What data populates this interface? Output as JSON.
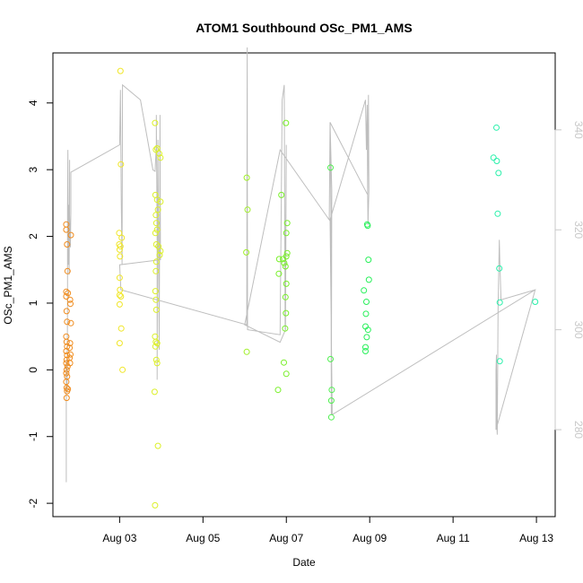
{
  "chart_data": {
    "type": "scatter",
    "title": "ATOM1 Southbound OSc_PM1_AMS",
    "xlabel": "Date",
    "ylabel": "OSc_PM1_AMS",
    "x_unit": "days since Aug 01",
    "xlim": [
      1.4,
      13.45
    ],
    "ylim": [
      -2.2,
      4.75
    ],
    "x_ticks": [
      {
        "value": 3,
        "label": "Aug 03"
      },
      {
        "value": 5,
        "label": "Aug 05"
      },
      {
        "value": 7,
        "label": "Aug 07"
      },
      {
        "value": 9,
        "label": "Aug 09"
      },
      {
        "value": 11,
        "label": "Aug 11"
      },
      {
        "value": 13,
        "label": "Aug 13"
      }
    ],
    "y_ticks": [
      -2,
      -1,
      0,
      1,
      2,
      3,
      4
    ],
    "y2_lim": [
      262.6,
      355.4
    ],
    "y2_ticks": [
      280,
      300,
      320,
      340
    ],
    "colors": {
      "axis": "#000000",
      "secondary_axis": "#c8c8c8",
      "line": "#bebebe"
    },
    "series": [
      {
        "name": "points",
        "type": "scatter",
        "points": [
          {
            "x": 1.72,
            "y": 2.18,
            "c": "#f08c1e"
          },
          {
            "x": 1.72,
            "y": 2.1,
            "c": "#f08c1e"
          },
          {
            "x": 1.74,
            "y": 1.88,
            "c": "#f08c1e"
          },
          {
            "x": 1.75,
            "y": 1.48,
            "c": "#f08c1e"
          },
          {
            "x": 1.72,
            "y": 1.17,
            "c": "#f08c1e"
          },
          {
            "x": 1.76,
            "y": 1.15,
            "c": "#f08c1e"
          },
          {
            "x": 1.72,
            "y": 1.1,
            "c": "#f08c1e"
          },
          {
            "x": 1.73,
            "y": 0.88,
            "c": "#f08c1e"
          },
          {
            "x": 1.74,
            "y": 0.72,
            "c": "#f08c1e"
          },
          {
            "x": 1.72,
            "y": 0.5,
            "c": "#f08c1e"
          },
          {
            "x": 1.73,
            "y": 0.42,
            "c": "#f08c1e"
          },
          {
            "x": 1.74,
            "y": 0.35,
            "c": "#f08c1e"
          },
          {
            "x": 1.72,
            "y": 0.28,
            "c": "#f08c1e"
          },
          {
            "x": 1.74,
            "y": 0.22,
            "c": "#f08c1e"
          },
          {
            "x": 1.73,
            "y": 0.15,
            "c": "#f08c1e"
          },
          {
            "x": 1.72,
            "y": 0.1,
            "c": "#f08c1e"
          },
          {
            "x": 1.75,
            "y": 0.05,
            "c": "#f08c1e"
          },
          {
            "x": 1.73,
            "y": 0.0,
            "c": "#f08c1e"
          },
          {
            "x": 1.72,
            "y": -0.05,
            "c": "#f08c1e"
          },
          {
            "x": 1.74,
            "y": -0.1,
            "c": "#f08c1e"
          },
          {
            "x": 1.72,
            "y": -0.18,
            "c": "#f08c1e"
          },
          {
            "x": 1.73,
            "y": -0.27,
            "c": "#f08c1e"
          },
          {
            "x": 1.76,
            "y": -0.29,
            "c": "#f08c1e"
          },
          {
            "x": 1.74,
            "y": -0.32,
            "c": "#f08c1e"
          },
          {
            "x": 1.73,
            "y": -0.42,
            "c": "#f08c1e"
          },
          {
            "x": 1.83,
            "y": 2.02,
            "c": "#f08c1e"
          },
          {
            "x": 1.81,
            "y": 1.05,
            "c": "#f08c1e"
          },
          {
            "x": 1.82,
            "y": 0.99,
            "c": "#f08c1e"
          },
          {
            "x": 1.83,
            "y": 0.7,
            "c": "#f08c1e"
          },
          {
            "x": 1.81,
            "y": 0.4,
            "c": "#f08c1e"
          },
          {
            "x": 1.8,
            "y": 0.33,
            "c": "#f08c1e"
          },
          {
            "x": 1.82,
            "y": 0.23,
            "c": "#f08c1e"
          },
          {
            "x": 1.8,
            "y": 0.18,
            "c": "#f08c1e"
          },
          {
            "x": 1.81,
            "y": 0.1,
            "c": "#f08c1e"
          },
          {
            "x": 3.02,
            "y": 4.48,
            "c": "#f0e628"
          },
          {
            "x": 3.03,
            "y": 3.08,
            "c": "#f0e628"
          },
          {
            "x": 2.99,
            "y": 2.05,
            "c": "#f0e628"
          },
          {
            "x": 3.05,
            "y": 1.98,
            "c": "#f0e628"
          },
          {
            "x": 2.99,
            "y": 1.88,
            "c": "#f0e628"
          },
          {
            "x": 3.02,
            "y": 1.85,
            "c": "#f0e628"
          },
          {
            "x": 3.0,
            "y": 1.8,
            "c": "#f0e628"
          },
          {
            "x": 3.01,
            "y": 1.7,
            "c": "#f0e628"
          },
          {
            "x": 3.0,
            "y": 1.38,
            "c": "#f0e628"
          },
          {
            "x": 3.01,
            "y": 1.2,
            "c": "#f0e628"
          },
          {
            "x": 3.0,
            "y": 1.12,
            "c": "#f0e628"
          },
          {
            "x": 3.03,
            "y": 1.1,
            "c": "#f0e628"
          },
          {
            "x": 3.0,
            "y": 0.98,
            "c": "#f0e628"
          },
          {
            "x": 3.04,
            "y": 0.62,
            "c": "#f0e628"
          },
          {
            "x": 3.0,
            "y": 0.4,
            "c": "#f0e628"
          },
          {
            "x": 3.07,
            "y": 0.0,
            "c": "#f0e628"
          },
          {
            "x": 3.85,
            "y": 3.7,
            "c": "#dcf028"
          },
          {
            "x": 3.9,
            "y": 3.32,
            "c": "#dcf028"
          },
          {
            "x": 3.87,
            "y": 3.3,
            "c": "#dcf028"
          },
          {
            "x": 3.95,
            "y": 3.24,
            "c": "#dcf028"
          },
          {
            "x": 3.98,
            "y": 3.18,
            "c": "#dcf028"
          },
          {
            "x": 3.86,
            "y": 2.62,
            "c": "#dcf028"
          },
          {
            "x": 3.9,
            "y": 2.55,
            "c": "#dcf028"
          },
          {
            "x": 3.98,
            "y": 2.52,
            "c": "#dcf028"
          },
          {
            "x": 3.92,
            "y": 2.4,
            "c": "#dcf028"
          },
          {
            "x": 3.87,
            "y": 2.32,
            "c": "#dcf028"
          },
          {
            "x": 3.88,
            "y": 2.2,
            "c": "#dcf028"
          },
          {
            "x": 3.9,
            "y": 2.1,
            "c": "#dcf028"
          },
          {
            "x": 3.86,
            "y": 2.05,
            "c": "#dcf028"
          },
          {
            "x": 3.88,
            "y": 1.88,
            "c": "#dcf028"
          },
          {
            "x": 3.93,
            "y": 1.85,
            "c": "#dcf028"
          },
          {
            "x": 3.98,
            "y": 1.78,
            "c": "#dcf028"
          },
          {
            "x": 3.96,
            "y": 1.72,
            "c": "#dcf028"
          },
          {
            "x": 3.88,
            "y": 1.62,
            "c": "#dcf028"
          },
          {
            "x": 3.87,
            "y": 1.48,
            "c": "#dcf028"
          },
          {
            "x": 3.86,
            "y": 1.18,
            "c": "#dcf028"
          },
          {
            "x": 3.87,
            "y": 1.05,
            "c": "#dcf028"
          },
          {
            "x": 3.88,
            "y": 0.9,
            "c": "#dcf028"
          },
          {
            "x": 3.85,
            "y": 0.5,
            "c": "#dcf028"
          },
          {
            "x": 3.87,
            "y": 0.42,
            "c": "#dcf028"
          },
          {
            "x": 3.9,
            "y": 0.4,
            "c": "#dcf028"
          },
          {
            "x": 3.86,
            "y": 0.35,
            "c": "#dcf028"
          },
          {
            "x": 3.88,
            "y": 0.15,
            "c": "#dcf028"
          },
          {
            "x": 3.9,
            "y": 0.1,
            "c": "#dcf028"
          },
          {
            "x": 3.84,
            "y": -0.33,
            "c": "#dcf028"
          },
          {
            "x": 3.92,
            "y": -1.14,
            "c": "#dcf028"
          },
          {
            "x": 3.85,
            "y": -2.03,
            "c": "#dcf028"
          },
          {
            "x": 6.05,
            "y": 2.88,
            "c": "#a0f028"
          },
          {
            "x": 6.07,
            "y": 2.4,
            "c": "#a0f028"
          },
          {
            "x": 6.04,
            "y": 1.76,
            "c": "#a0f028"
          },
          {
            "x": 6.05,
            "y": 0.27,
            "c": "#a0f028"
          },
          {
            "x": 6.88,
            "y": 2.62,
            "c": "#78f028"
          },
          {
            "x": 6.99,
            "y": 3.7,
            "c": "#78f028"
          },
          {
            "x": 7.02,
            "y": 2.2,
            "c": "#78f028"
          },
          {
            "x": 7.0,
            "y": 2.05,
            "c": "#78f028"
          },
          {
            "x": 6.83,
            "y": 1.66,
            "c": "#78f028"
          },
          {
            "x": 6.92,
            "y": 1.66,
            "c": "#78f028"
          },
          {
            "x": 7.02,
            "y": 1.75,
            "c": "#78f028"
          },
          {
            "x": 7.0,
            "y": 1.7,
            "c": "#78f028"
          },
          {
            "x": 6.95,
            "y": 1.6,
            "c": "#78f028"
          },
          {
            "x": 6.98,
            "y": 1.55,
            "c": "#78f028"
          },
          {
            "x": 6.82,
            "y": 1.44,
            "c": "#78f028"
          },
          {
            "x": 7.0,
            "y": 1.29,
            "c": "#78f028"
          },
          {
            "x": 6.98,
            "y": 1.09,
            "c": "#78f028"
          },
          {
            "x": 6.99,
            "y": 0.85,
            "c": "#78f028"
          },
          {
            "x": 6.97,
            "y": 0.62,
            "c": "#78f028"
          },
          {
            "x": 6.94,
            "y": 0.11,
            "c": "#78f028"
          },
          {
            "x": 7.0,
            "y": -0.06,
            "c": "#78f028"
          },
          {
            "x": 6.8,
            "y": -0.3,
            "c": "#78f028"
          },
          {
            "x": 8.06,
            "y": 3.03,
            "c": "#50f050"
          },
          {
            "x": 8.06,
            "y": 0.16,
            "c": "#50f050"
          },
          {
            "x": 8.09,
            "y": -0.3,
            "c": "#50f050"
          },
          {
            "x": 8.08,
            "y": -0.46,
            "c": "#50f050"
          },
          {
            "x": 8.08,
            "y": -0.71,
            "c": "#50f050"
          },
          {
            "x": 8.94,
            "y": 2.18,
            "c": "#28f05a"
          },
          {
            "x": 8.95,
            "y": 2.16,
            "c": "#28f05a"
          },
          {
            "x": 8.97,
            "y": 1.65,
            "c": "#28f05a"
          },
          {
            "x": 8.98,
            "y": 1.35,
            "c": "#28f05a"
          },
          {
            "x": 8.86,
            "y": 1.19,
            "c": "#28f05a"
          },
          {
            "x": 8.92,
            "y": 1.02,
            "c": "#28f05a"
          },
          {
            "x": 8.91,
            "y": 0.84,
            "c": "#28f05a"
          },
          {
            "x": 8.9,
            "y": 0.65,
            "c": "#28f05a"
          },
          {
            "x": 8.96,
            "y": 0.6,
            "c": "#28f05a"
          },
          {
            "x": 8.93,
            "y": 0.49,
            "c": "#28f05a"
          },
          {
            "x": 8.9,
            "y": 0.34,
            "c": "#28f05a"
          },
          {
            "x": 8.9,
            "y": 0.28,
            "c": "#28f05a"
          },
          {
            "x": 12.04,
            "y": 3.63,
            "c": "#28f0aa"
          },
          {
            "x": 11.97,
            "y": 3.18,
            "c": "#28f0aa"
          },
          {
            "x": 12.05,
            "y": 3.13,
            "c": "#28f0aa"
          },
          {
            "x": 12.09,
            "y": 2.95,
            "c": "#28f0aa"
          },
          {
            "x": 12.07,
            "y": 2.34,
            "c": "#28f0aa"
          },
          {
            "x": 12.11,
            "y": 1.52,
            "c": "#28f0aa"
          },
          {
            "x": 12.12,
            "y": 1.01,
            "c": "#28f0aa"
          },
          {
            "x": 12.12,
            "y": 0.13,
            "c": "#28f0aa"
          },
          {
            "x": 12.97,
            "y": 1.02,
            "c": "#28f0aa"
          }
        ]
      },
      {
        "name": "secondary-line",
        "type": "line",
        "axis": "right",
        "points": [
          [
            1.72,
            269.5
          ],
          [
            1.72,
            292.5
          ],
          [
            1.73,
            294
          ],
          [
            1.74,
            287.5
          ],
          [
            1.75,
            305
          ],
          [
            1.75,
            325
          ],
          [
            1.76,
            336
          ],
          [
            1.77,
            313
          ],
          [
            1.78,
            325
          ],
          [
            1.79,
            311
          ],
          [
            1.8,
            334
          ],
          [
            1.8,
            323
          ],
          [
            1.82,
            316.5
          ],
          [
            1.83,
            323.8
          ],
          [
            1.83,
            331.5
          ],
          [
            3.0,
            337
          ],
          [
            3.02,
            348
          ],
          [
            3.04,
            326
          ],
          [
            3.06,
            313
          ],
          [
            3.07,
            349
          ],
          [
            3.5,
            346
          ],
          [
            3.8,
            332
          ],
          [
            3.85,
            331.7
          ],
          [
            3.88,
            337
          ],
          [
            3.88,
            343
          ],
          [
            3.9,
            318
          ],
          [
            3.9,
            290
          ],
          [
            3.92,
            338
          ],
          [
            3.95,
            296
          ],
          [
            3.97,
            343
          ],
          [
            3.98,
            314
          ],
          [
            3.0,
            313
          ],
          [
            3.03,
            308
          ],
          [
            6.05,
            301
          ],
          [
            6.06,
            356.5
          ],
          [
            6.07,
            300
          ],
          [
            6.85,
            299
          ],
          [
            6.9,
            346
          ],
          [
            6.95,
            349
          ],
          [
            6.97,
            300
          ],
          [
            7.0,
            337
          ],
          [
            6.98,
            300
          ],
          [
            6.85,
            297.5
          ],
          [
            6.0,
            301
          ],
          [
            6.85,
            336
          ],
          [
            8.03,
            322
          ],
          [
            8.05,
            341.5
          ],
          [
            8.07,
            323
          ],
          [
            8.08,
            283
          ],
          [
            8.09,
            328
          ],
          [
            8.05,
            341.5
          ],
          [
            8.95,
            327
          ],
          [
            8.97,
            347
          ],
          [
            8.98,
            328
          ],
          [
            8.96,
            321
          ],
          [
            8.95,
            327
          ],
          [
            8.94,
            345
          ],
          [
            8.92,
            336
          ],
          [
            8.9,
            346
          ],
          [
            8.05,
            322
          ],
          [
            8.1,
            283
          ],
          [
            12.97,
            308
          ],
          [
            12.03,
            280
          ],
          [
            12.03,
            292
          ],
          [
            12.04,
            295
          ],
          [
            12.05,
            281
          ],
          [
            12.06,
            279
          ],
          [
            12.08,
            304
          ],
          [
            12.11,
            318
          ],
          [
            12.12,
            314
          ],
          [
            12.15,
            306
          ],
          [
            12.97,
            308
          ]
        ]
      }
    ]
  }
}
